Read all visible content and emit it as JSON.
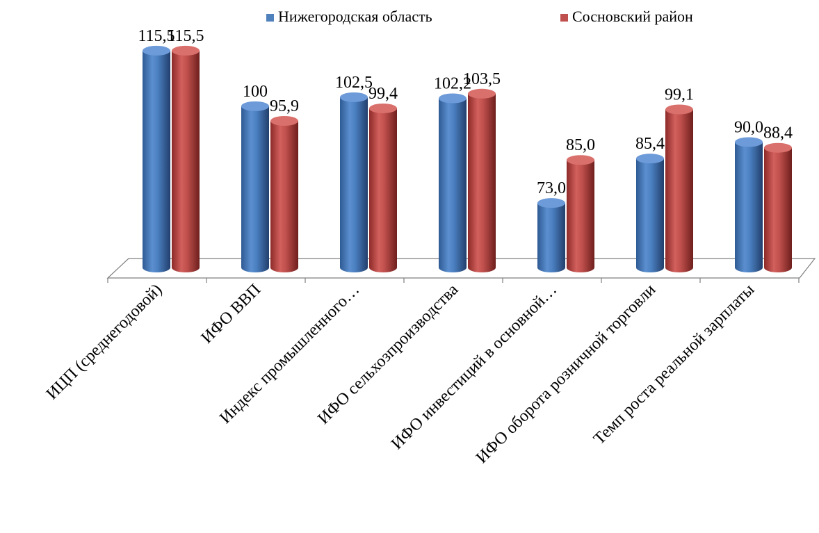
{
  "chart_data": {
    "type": "bar",
    "title": "",
    "xlabel": "",
    "ylabel": "",
    "ylim": [
      55,
      118
    ],
    "grid": false,
    "legend_position": "top",
    "categories": [
      "ИЦП (среднегодовой)",
      "ИФО ВВП",
      "Индекс промышленного…",
      "ИФО сельхозпроизводства",
      "ИФО инвестиций  в основной…",
      "ИФО оборота розничной торговли",
      "Темп роста реальной зарплаты"
    ],
    "series": [
      {
        "name": "Нижегородская область",
        "color": "#4f81bd",
        "values": [
          115.5,
          100,
          102.5,
          102.2,
          73.0,
          85.4,
          90.0
        ],
        "labels": [
          "115,5",
          "100",
          "102,5",
          "102,2",
          "73,0",
          "85,4",
          "90,0"
        ]
      },
      {
        "name": "Сосновский район",
        "color": "#c0504d",
        "values": [
          115.5,
          95.9,
          99.4,
          103.5,
          85.0,
          99.1,
          88.4
        ],
        "labels": [
          "115,5",
          "95,9",
          "99,4",
          "103,5",
          "85,0",
          "99,1",
          "88,4"
        ]
      }
    ]
  }
}
